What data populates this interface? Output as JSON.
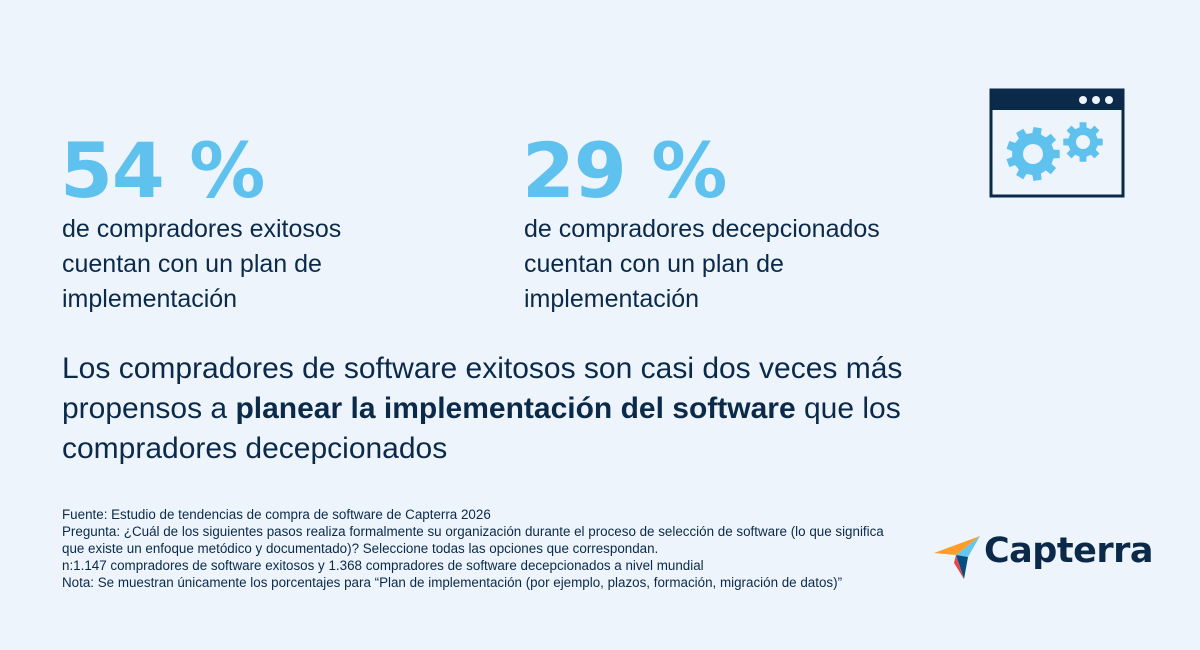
{
  "stats": [
    {
      "value": "54 %",
      "description": "de compradores exitosos cuentan con un plan de implementación"
    },
    {
      "value": "29 %",
      "description": "de compradores decepcionados cuentan con un plan de implementación"
    }
  ],
  "headline": {
    "before": "Los compradores de software exitosos son casi dos veces más propensos a ",
    "emphasis": "planear la implementación del software",
    "after": " que los compradores decepcionados"
  },
  "footnote": {
    "source": "Fuente: Estudio de tendencias de compra de software de Capterra 2026",
    "question": "Pregunta: ¿Cuál de los siguientes pasos realiza formalmente su organización durante el proceso de selección de software (lo que significa que existe un enfoque metódico y documentado)? Seleccione todas las opciones que correspondan.",
    "sample": "n:1.147 compradores de software exitosos y 1.368 compradores de software decepcionados a nivel mundial",
    "note": "Nota: Se muestran únicamente los porcentajes para “Plan de implementación (por ejemplo, plazos, formación, migración de datos)”"
  },
  "logo": {
    "text": "Capterra"
  },
  "icons": {
    "window": "browser-window-gears-icon",
    "logo_mark": "capterra-arrow-icon"
  },
  "colors": {
    "accent": "#5ec1ee",
    "text": "#0b2a4a",
    "background": "#edf4fb"
  }
}
